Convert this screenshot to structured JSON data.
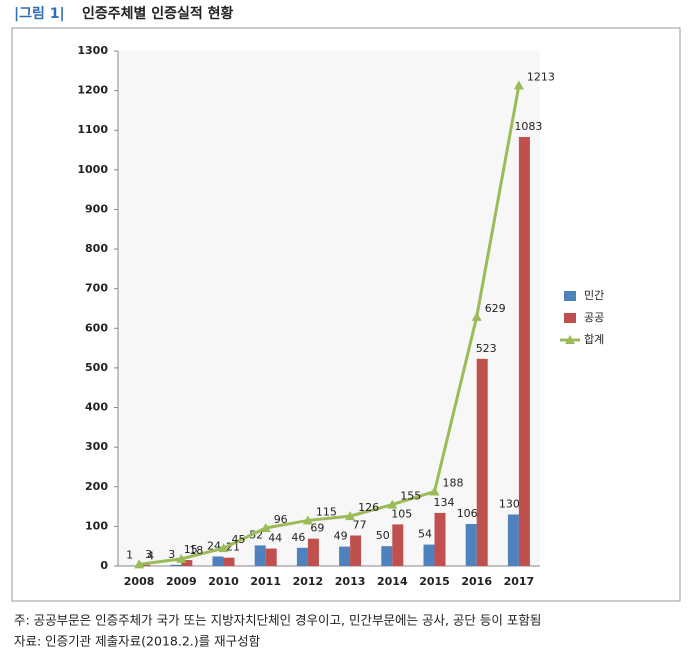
{
  "figure_label": "|그림 1|",
  "chart_data": {
    "type": "bar-line",
    "title": "인증주체별 인증실적 현황",
    "categories": [
      "2008",
      "2009",
      "2010",
      "2011",
      "2012",
      "2013",
      "2014",
      "2015",
      "2016",
      "2017"
    ],
    "series": [
      {
        "name": "민간",
        "type": "bar",
        "color": "#4f81bd",
        "values": [
          1,
          3,
          24,
          52,
          46,
          49,
          50,
          54,
          106,
          130
        ]
      },
      {
        "name": "공공",
        "type": "bar",
        "color": "#c0504d",
        "values": [
          3,
          15,
          21,
          44,
          69,
          77,
          105,
          134,
          523,
          1083
        ]
      },
      {
        "name": "합계",
        "type": "line",
        "color": "#9bbb59",
        "values": [
          4,
          18,
          45,
          96,
          115,
          126,
          155,
          188,
          629,
          1213
        ]
      }
    ],
    "ylim": [
      0,
      1300
    ],
    "yticks": [
      0,
      100,
      200,
      300,
      400,
      500,
      600,
      700,
      800,
      900,
      1000,
      1100,
      1200,
      1300
    ],
    "legend": "right",
    "notes": [
      "주: 공공부문은 인증주체가 국가 또는 지방자치단체인 경우이고, 민간부문에는 공사, 공단 등이 포함됨",
      "자료: 인증기관 제출자료(2018.2.)를 재구성함"
    ]
  }
}
